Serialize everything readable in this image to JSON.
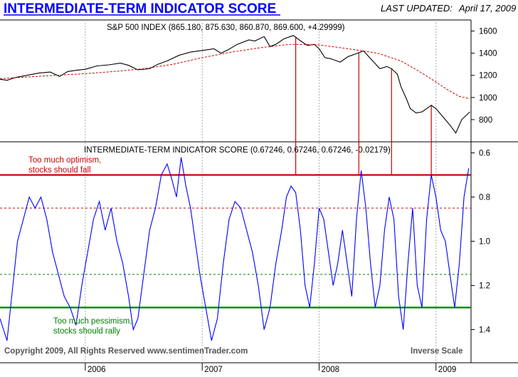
{
  "header": {
    "title": "INTERMEDIATE-TERM INDICATOR SCORE",
    "updated_label": "LAST UPDATED:",
    "updated_date": "April 17, 2009"
  },
  "colors": {
    "title": "#0000ff",
    "price_line": "#000000",
    "moving_avg": "#cc0000",
    "indicator_line": "#0000ff",
    "optimism_line": "#cc0000",
    "pessimism_line": "#008000",
    "grid": "#aaaaaa"
  },
  "chart_data": [
    {
      "type": "line",
      "title": "S&P 500 INDEX (865.180, 875.630, 860.870, 869.600, +4.29999)",
      "ylim": [
        600,
        1700
      ],
      "yticks": [
        {
          "value": 800,
          "label": "800"
        },
        {
          "value": 1000,
          "label": "1000"
        },
        {
          "value": 1200,
          "label": "1200"
        },
        {
          "value": 1400,
          "label": "1400"
        },
        {
          "value": 1600,
          "label": "1600"
        }
      ],
      "xlim": [
        2005.27,
        2009.3
      ],
      "series": [
        {
          "name": "S&P 500",
          "x": [
            2005.27,
            2005.33,
            2005.4,
            2005.5,
            2005.6,
            2005.7,
            2005.78,
            2005.85,
            2005.92,
            2006.0,
            2006.1,
            2006.2,
            2006.3,
            2006.37,
            2006.45,
            2006.55,
            2006.62,
            2006.7,
            2006.8,
            2006.9,
            2007.0,
            2007.1,
            2007.16,
            2007.22,
            2007.3,
            2007.4,
            2007.45,
            2007.53,
            2007.58,
            2007.63,
            2007.7,
            2007.78,
            2007.83,
            2007.9,
            2007.96,
            2008.0,
            2008.05,
            2008.1,
            2008.18,
            2008.25,
            2008.33,
            2008.38,
            2008.45,
            2008.52,
            2008.58,
            2008.62,
            2008.67,
            2008.7,
            2008.75,
            2008.78,
            2008.83,
            2008.88,
            2008.92,
            2008.96,
            2009.0,
            2009.04,
            2009.08,
            2009.12,
            2009.17,
            2009.22,
            2009.29
          ],
          "values": [
            1165,
            1155,
            1180,
            1200,
            1220,
            1230,
            1190,
            1235,
            1245,
            1255,
            1285,
            1295,
            1310,
            1290,
            1250,
            1260,
            1300,
            1330,
            1380,
            1410,
            1425,
            1440,
            1400,
            1430,
            1480,
            1520,
            1510,
            1550,
            1460,
            1480,
            1530,
            1560,
            1520,
            1470,
            1480,
            1440,
            1360,
            1350,
            1320,
            1370,
            1400,
            1420,
            1340,
            1260,
            1280,
            1260,
            1210,
            1100,
            980,
            900,
            860,
            870,
            900,
            930,
            900,
            850,
            800,
            750,
            680,
            800,
            870
          ]
        },
        {
          "name": "Moving Average",
          "x": [
            2005.27,
            2005.5,
            2005.75,
            2006.0,
            2006.25,
            2006.5,
            2006.75,
            2007.0,
            2007.25,
            2007.5,
            2007.75,
            2008.0,
            2008.25,
            2008.5,
            2008.7,
            2008.85,
            2009.0,
            2009.1,
            2009.2,
            2009.29
          ],
          "values": [
            1170,
            1185,
            1200,
            1215,
            1235,
            1260,
            1300,
            1360,
            1410,
            1450,
            1480,
            1475,
            1440,
            1400,
            1330,
            1240,
            1140,
            1070,
            1010,
            990
          ]
        }
      ]
    },
    {
      "type": "line",
      "title": "INTERMEDIATE-TERM INDICATOR SCORE (0.67246, 0.67246, 0.67246, -0.02179)",
      "scale": "inverse",
      "ylim": [
        0.55,
        1.55
      ],
      "yticks": [
        {
          "value": 0.6,
          "label": "0.6"
        },
        {
          "value": 0.8,
          "label": "0.8"
        },
        {
          "value": 1.0,
          "label": "1.0"
        },
        {
          "value": 1.2,
          "label": "1.2"
        },
        {
          "value": 1.4,
          "label": "1.4"
        }
      ],
      "xlim": [
        2005.27,
        2009.3
      ],
      "xticks": [
        {
          "value": 2006.0,
          "label": "2006"
        },
        {
          "value": 2007.0,
          "label": "2007"
        },
        {
          "value": 2008.0,
          "label": "2008"
        },
        {
          "value": 2009.0,
          "label": "2009"
        }
      ],
      "reference_lines": [
        {
          "name": "optimism",
          "value": 0.7,
          "style": "solid"
        },
        {
          "name": "upper-dashed",
          "value": 0.85,
          "style": "dashed"
        },
        {
          "name": "lower-dashed",
          "value": 1.15,
          "style": "dashed"
        },
        {
          "name": "pessimism",
          "value": 1.3,
          "style": "solid"
        }
      ],
      "signal_dates": [
        2007.8,
        2008.34,
        2008.62,
        2008.96
      ],
      "series": [
        {
          "name": "Indicator Score",
          "x": [
            2005.27,
            2005.33,
            2005.38,
            2005.42,
            2005.47,
            2005.52,
            2005.57,
            2005.62,
            2005.67,
            2005.72,
            2005.77,
            2005.82,
            2005.87,
            2005.92,
            2005.97,
            2006.02,
            2006.07,
            2006.12,
            2006.17,
            2006.22,
            2006.27,
            2006.32,
            2006.37,
            2006.41,
            2006.45,
            2006.5,
            2006.55,
            2006.6,
            2006.65,
            2006.7,
            2006.74,
            2006.78,
            2006.82,
            2006.86,
            2006.9,
            2006.94,
            2006.98,
            2007.03,
            2007.08,
            2007.13,
            2007.18,
            2007.23,
            2007.28,
            2007.33,
            2007.38,
            2007.43,
            2007.48,
            2007.53,
            2007.58,
            2007.63,
            2007.68,
            2007.72,
            2007.76,
            2007.8,
            2007.84,
            2007.88,
            2007.92,
            2007.96,
            2008.0,
            2008.04,
            2008.08,
            2008.12,
            2008.16,
            2008.2,
            2008.24,
            2008.28,
            2008.32,
            2008.36,
            2008.4,
            2008.44,
            2008.48,
            2008.52,
            2008.56,
            2008.6,
            2008.64,
            2008.68,
            2008.72,
            2008.76,
            2008.8,
            2008.84,
            2008.88,
            2008.92,
            2008.96,
            2009.0,
            2009.04,
            2009.08,
            2009.12,
            2009.16,
            2009.2,
            2009.24,
            2009.28
          ],
          "values": [
            1.35,
            1.45,
            1.2,
            1.0,
            0.9,
            0.8,
            0.85,
            0.8,
            0.9,
            1.05,
            1.15,
            1.25,
            1.3,
            1.38,
            1.2,
            1.05,
            0.9,
            0.82,
            0.95,
            0.85,
            1.0,
            1.1,
            1.25,
            1.4,
            1.35,
            1.15,
            0.95,
            0.85,
            0.7,
            0.65,
            0.72,
            0.8,
            0.62,
            0.75,
            0.85,
            1.0,
            1.15,
            1.3,
            1.45,
            1.35,
            1.1,
            0.9,
            0.82,
            0.85,
            0.95,
            1.05,
            1.2,
            1.4,
            1.3,
            1.1,
            0.95,
            0.8,
            0.75,
            0.78,
            0.95,
            1.2,
            1.3,
            1.1,
            0.85,
            0.9,
            1.05,
            1.2,
            1.1,
            0.95,
            1.1,
            1.25,
            0.9,
            0.68,
            0.85,
            1.1,
            1.3,
            1.2,
            0.95,
            0.8,
            0.9,
            1.25,
            1.4,
            1.1,
            0.85,
            1.2,
            1.3,
            0.9,
            0.7,
            0.8,
            0.95,
            1.0,
            1.15,
            1.3,
            1.1,
            0.8,
            0.67
          ]
        }
      ],
      "annotations": [
        {
          "text": "Too much optimism,"
        },
        {
          "text": "stocks should fall"
        },
        {
          "text": "Too much pessimism,"
        },
        {
          "text": "stocks should rally"
        }
      ]
    }
  ],
  "footer": {
    "copyright": "Copyright 2009, All Rights Reserved  www.sentimenTrader.com",
    "scale_note": "Inverse Scale"
  }
}
